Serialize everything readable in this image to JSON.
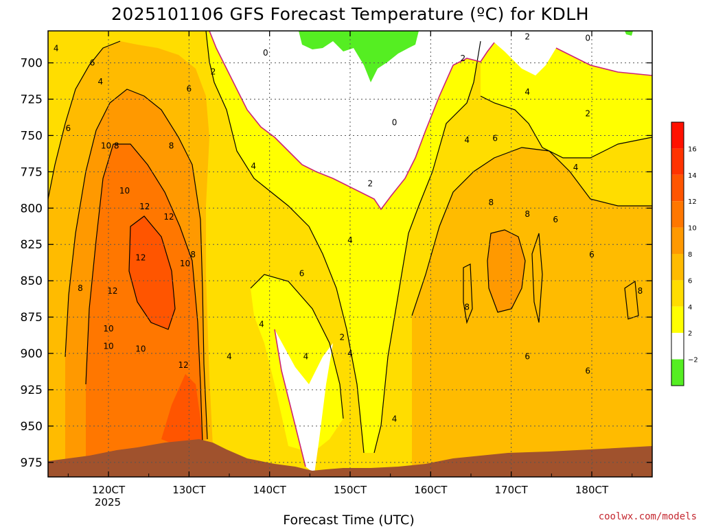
{
  "chart_data": {
    "type": "contour",
    "title": "2025101106 GFS Forecast Temperature (ºC) for KDLH",
    "xlabel": "Forecast Time (UTC)",
    "ylabel": "",
    "x_ticks": [
      "120CT",
      "130CT",
      "140CT",
      "150CT",
      "160CT",
      "170CT",
      "180CT"
    ],
    "x_tick_year": "2025",
    "y_ticks": [
      "700",
      "725",
      "750",
      "775",
      "800",
      "825",
      "850",
      "875",
      "900",
      "925",
      "950",
      "975"
    ],
    "ylim": [
      985,
      678
    ],
    "colorbar_ticks": [
      "16",
      "14",
      "12",
      "10",
      "8",
      "6",
      "4",
      "2",
      "−2"
    ],
    "colors": {
      "neg2_0": "#55ee22",
      "0_2": "#ffffff",
      "2_4": "#ffff00",
      "4_6": "#ffdd00",
      "6_8": "#ffbb00",
      "8_10": "#ff9900",
      "10_12": "#ff7700",
      "12_14": "#ff5500",
      "14_16": "#ff3300",
      "16_18": "#ff1100",
      "terrain": "#a0522d",
      "zero_line": "#cc2277",
      "contour": "#000000"
    },
    "contour_labels": [
      {
        "v": "4",
        "t": 113.5,
        "p": 690
      },
      {
        "v": "6",
        "t": 118,
        "p": 700
      },
      {
        "v": "4",
        "t": 119,
        "p": 713
      },
      {
        "v": "6",
        "t": 115,
        "p": 745
      },
      {
        "v": "10",
        "t": 119.7,
        "p": 757
      },
      {
        "v": "8",
        "t": 121,
        "p": 757
      },
      {
        "v": "10",
        "t": 122,
        "p": 788
      },
      {
        "v": "12",
        "t": 124.5,
        "p": 799
      },
      {
        "v": "12",
        "t": 127.5,
        "p": 806
      },
      {
        "v": "12",
        "t": 124,
        "p": 834
      },
      {
        "v": "8",
        "t": 116.5,
        "p": 855
      },
      {
        "v": "12",
        "t": 120.5,
        "p": 857
      },
      {
        "v": "10",
        "t": 120,
        "p": 883
      },
      {
        "v": "10",
        "t": 120,
        "p": 895
      },
      {
        "v": "10",
        "t": 124,
        "p": 897
      },
      {
        "v": "12",
        "t": 129.3,
        "p": 908
      },
      {
        "v": "8",
        "t": 127.8,
        "p": 757
      },
      {
        "v": "6",
        "t": 130,
        "p": 718
      },
      {
        "v": "2",
        "t": 133,
        "p": 706
      },
      {
        "v": "10",
        "t": 129.5,
        "p": 838
      },
      {
        "v": "8",
        "t": 130.5,
        "p": 832
      },
      {
        "v": "0",
        "t": 139.5,
        "p": 693
      },
      {
        "v": "4",
        "t": 138,
        "p": 771
      },
      {
        "v": "6",
        "t": 144,
        "p": 845
      },
      {
        "v": "4",
        "t": 139,
        "p": 880
      },
      {
        "v": "4",
        "t": 144.5,
        "p": 902
      },
      {
        "v": "4",
        "t": 135,
        "p": 902
      },
      {
        "v": "2",
        "t": 149,
        "p": 889
      },
      {
        "v": "4",
        "t": 150,
        "p": 900
      },
      {
        "v": "4",
        "t": 150,
        "p": 822
      },
      {
        "v": "2",
        "t": 152.5,
        "p": 783
      },
      {
        "v": "0",
        "t": 155.5,
        "p": 741
      },
      {
        "v": "4",
        "t": 164.5,
        "p": 753
      },
      {
        "v": "6",
        "t": 168,
        "p": 752
      },
      {
        "v": "2",
        "t": 164,
        "p": 697
      },
      {
        "v": "2",
        "t": 172,
        "p": 682
      },
      {
        "v": "4",
        "t": 172,
        "p": 720
      },
      {
        "v": "8",
        "t": 167.5,
        "p": 796
      },
      {
        "v": "8",
        "t": 172,
        "p": 804
      },
      {
        "v": "6",
        "t": 175.5,
        "p": 808
      },
      {
        "v": "8",
        "t": 164.5,
        "p": 868
      },
      {
        "v": "6",
        "t": 172,
        "p": 902
      },
      {
        "v": "6",
        "t": 179.5,
        "p": 912
      },
      {
        "v": "6",
        "t": 180,
        "p": 832
      },
      {
        "v": "2",
        "t": 179.5,
        "p": 735
      },
      {
        "v": "4",
        "t": 178,
        "p": 772
      },
      {
        "v": "0",
        "t": 179.5,
        "p": 683
      },
      {
        "v": "4",
        "t": 155.5,
        "p": 945
      },
      {
        "v": "8",
        "t": 186,
        "p": 857
      }
    ]
  },
  "credit": "coolwx.com/models"
}
